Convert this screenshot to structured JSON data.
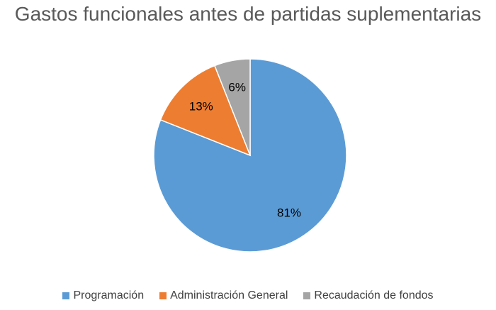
{
  "chart_data": {
    "type": "pie",
    "title": "Gastos funcionales antes de partidas suplementarias",
    "categories": [
      "Programación",
      "Administración General",
      "Recaudación de fondos"
    ],
    "values": [
      81,
      13,
      6
    ],
    "data_labels": [
      "81%",
      "13%",
      "6%"
    ],
    "colors": [
      "#5B9BD5",
      "#ED7D31",
      "#A5A5A5"
    ],
    "start_angle_deg": 0,
    "direction": "clockwise",
    "legend_position": "bottom"
  }
}
